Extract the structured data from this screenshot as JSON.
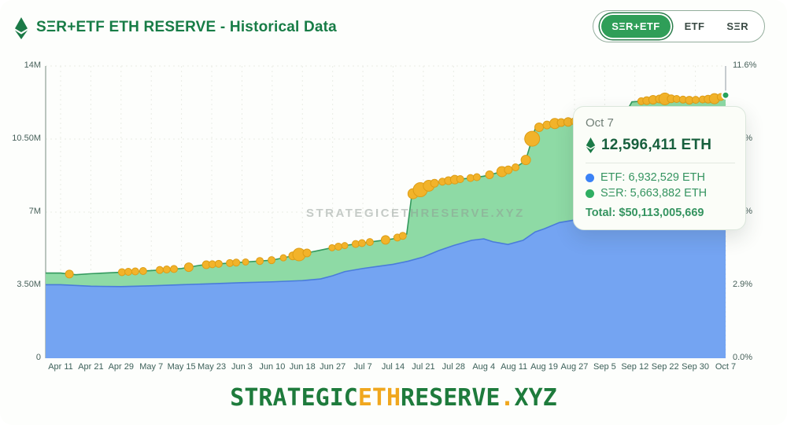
{
  "header": {
    "title": "SΞR+ETF ETH RESERVE - Historical Data",
    "toggle": {
      "options": [
        {
          "label": "SΞR+ETF",
          "selected": true
        },
        {
          "label": "ETF",
          "selected": false
        },
        {
          "label": "SΞR",
          "selected": false
        }
      ]
    }
  },
  "watermark": "STRATEGICETHRESERVE.XYZ",
  "tooltip": {
    "date": "Oct 7",
    "main_value": "12,596,411 ETH",
    "etf_row": "ETF: 6,932,529 ETH",
    "ser_row": "SΞR: 5,663,882 ETH",
    "total_row": "Total: $50,113,005,669"
  },
  "footer": {
    "part1": "STRATEGIC",
    "part2": "ETH",
    "part3": "RESERVE",
    "part4": ".",
    "part5": "XYZ"
  },
  "colors": {
    "title_green": "#177c46",
    "selected_pill": "#2f9e58",
    "etf_fill": "#74a4f2",
    "etf_line": "#4a7cdb",
    "ser_fill": "#8edaa5",
    "ser_line": "#339a5d",
    "event_dot": "#f2b32a",
    "event_dot_stroke": "#dd9d17",
    "tooltip_etf_dot": "#3b82f6",
    "tooltip_ser_dot": "#2fae62",
    "footer_amber": "#f0a71e"
  },
  "chart_data": {
    "type": "area",
    "stacked": true,
    "unit": "million ETH",
    "title": "SΞR+ETF ETH RESERVE - Historical Data",
    "x_labels": [
      "Apr 11",
      "Apr 21",
      "Apr 29",
      "May 7",
      "May 15",
      "May 23",
      "Jun 3",
      "Jun 10",
      "Jun 18",
      "Jun 27",
      "Jul 7",
      "Jul 14",
      "Jul 21",
      "Jul 28",
      "Aug 4",
      "Aug 11",
      "Aug 19",
      "Aug 27",
      "Sep 5",
      "Sep 12",
      "Sep 22",
      "Sep 30",
      "Oct 7"
    ],
    "y_left_ticks": [
      "0",
      "3.50M",
      "7M",
      "10.50M",
      "14M"
    ],
    "y_right_ticks": [
      "0.0%",
      "2.9%",
      "5.8%",
      "8.7%",
      "11.6%"
    ],
    "y_max_millions": 14,
    "grid": true,
    "legend_position": "none",
    "series": [
      {
        "name": "ETF",
        "role": "lower",
        "points": [
          [
            0,
            3.52
          ],
          [
            1,
            3.45
          ],
          [
            2,
            3.43
          ],
          [
            3,
            3.47
          ],
          [
            4,
            3.52
          ],
          [
            5,
            3.57
          ],
          [
            6,
            3.62
          ],
          [
            7,
            3.66
          ],
          [
            8,
            3.72
          ],
          [
            8.6,
            3.8
          ],
          [
            9,
            3.95
          ],
          [
            9.4,
            4.15
          ],
          [
            10,
            4.3
          ],
          [
            10.5,
            4.4
          ],
          [
            11,
            4.5
          ],
          [
            11.5,
            4.65
          ],
          [
            12,
            4.85
          ],
          [
            12.5,
            5.15
          ],
          [
            13,
            5.4
          ],
          [
            13.6,
            5.65
          ],
          [
            14,
            5.72
          ],
          [
            14.3,
            5.58
          ],
          [
            14.8,
            5.45
          ],
          [
            15.3,
            5.65
          ],
          [
            15.7,
            6.05
          ],
          [
            16,
            6.2
          ],
          [
            16.5,
            6.5
          ],
          [
            17,
            6.62
          ],
          [
            17.5,
            6.66
          ],
          [
            18,
            6.7
          ],
          [
            18.5,
            6.78
          ],
          [
            19,
            6.88
          ],
          [
            19.5,
            6.93
          ],
          [
            20,
            6.98
          ],
          [
            20.6,
            6.95
          ],
          [
            21,
            6.9
          ],
          [
            21.6,
            6.88
          ],
          [
            22,
            6.93
          ]
        ]
      },
      {
        "name": "SΞR+ETF total",
        "role": "upper-total",
        "points": [
          [
            0,
            4.08
          ],
          [
            0.5,
            4.0
          ],
          [
            1,
            4.05
          ],
          [
            2,
            4.12
          ],
          [
            3,
            4.2
          ],
          [
            4,
            4.3
          ],
          [
            4.6,
            4.45
          ],
          [
            5,
            4.5
          ],
          [
            6,
            4.6
          ],
          [
            7,
            4.7
          ],
          [
            7.5,
            4.85
          ],
          [
            8,
            5.0
          ],
          [
            8.5,
            5.15
          ],
          [
            9,
            5.3
          ],
          [
            9.5,
            5.42
          ],
          [
            10,
            5.52
          ],
          [
            10.5,
            5.62
          ],
          [
            11,
            5.72
          ],
          [
            11.3,
            5.85
          ],
          [
            11.45,
            5.95
          ],
          [
            11.62,
            7.85
          ],
          [
            12,
            8.15
          ],
          [
            12.4,
            8.4
          ],
          [
            13,
            8.55
          ],
          [
            13.5,
            8.62
          ],
          [
            14,
            8.72
          ],
          [
            14.5,
            8.9
          ],
          [
            15,
            9.1
          ],
          [
            15.38,
            9.45
          ],
          [
            15.7,
            11.0
          ],
          [
            16,
            11.15
          ],
          [
            16.5,
            11.28
          ],
          [
            17,
            11.35
          ],
          [
            17.5,
            11.4
          ],
          [
            18,
            11.45
          ],
          [
            18.6,
            11.5
          ],
          [
            18.9,
            12.28
          ],
          [
            19.3,
            12.32
          ],
          [
            19.8,
            12.42
          ],
          [
            20.3,
            12.43
          ],
          [
            20.8,
            12.36
          ],
          [
            21.3,
            12.4
          ],
          [
            21.7,
            12.44
          ],
          [
            22,
            12.6
          ]
        ]
      }
    ],
    "final_values": {
      "date": "Oct 7",
      "total_eth": 12596411,
      "etf_eth": 6932529,
      "ser_eth": 5663882,
      "total_usd": 50113005669
    },
    "purchase_events": [
      [
        0.29,
        5
      ],
      [
        2.03,
        4.5
      ],
      [
        2.24,
        4.5
      ],
      [
        2.47,
        4.5
      ],
      [
        2.73,
        4.5
      ],
      [
        3.28,
        4.5
      ],
      [
        3.51,
        4.5
      ],
      [
        3.75,
        4.5
      ],
      [
        4.24,
        5.5
      ],
      [
        4.82,
        5
      ],
      [
        5.02,
        4.5
      ],
      [
        5.23,
        4.5
      ],
      [
        5.6,
        4.5
      ],
      [
        5.81,
        4.5
      ],
      [
        6.12,
        4
      ],
      [
        6.59,
        4.5
      ],
      [
        6.98,
        4.5
      ],
      [
        7.37,
        4
      ],
      [
        7.68,
        5
      ],
      [
        7.89,
        8
      ],
      [
        8.15,
        5
      ],
      [
        8.98,
        4
      ],
      [
        9.19,
        4.5
      ],
      [
        9.4,
        4
      ],
      [
        9.76,
        4.5
      ],
      [
        9.97,
        4.5
      ],
      [
        10.23,
        4.5
      ],
      [
        10.75,
        5.5
      ],
      [
        11.14,
        4.5
      ],
      [
        11.32,
        4.5
      ],
      [
        11.66,
        6.5
      ],
      [
        11.9,
        9
      ],
      [
        12.18,
        7
      ],
      [
        12.37,
        5
      ],
      [
        12.63,
        4.5
      ],
      [
        12.83,
        5
      ],
      [
        13.04,
        5.5
      ],
      [
        13.22,
        4.5
      ],
      [
        13.56,
        4.5
      ],
      [
        13.77,
        4.5
      ],
      [
        14.19,
        5
      ],
      [
        14.6,
        6.5
      ],
      [
        14.81,
        5
      ],
      [
        15.05,
        4.5
      ],
      [
        15.39,
        6
      ],
      [
        15.6,
        9.5
      ],
      [
        15.83,
        5.5
      ],
      [
        16.09,
        5
      ],
      [
        16.35,
        6.5
      ],
      [
        16.56,
        5
      ],
      [
        16.79,
        5.5
      ],
      [
        17.0,
        4.5
      ],
      [
        19.21,
        4.5
      ],
      [
        19.39,
        5
      ],
      [
        19.6,
        5.5
      ],
      [
        19.81,
        5
      ],
      [
        19.99,
        7.5
      ],
      [
        20.2,
        5
      ],
      [
        20.38,
        4.5
      ],
      [
        20.59,
        4.5
      ],
      [
        20.8,
        5
      ],
      [
        21.01,
        4.5
      ],
      [
        21.24,
        4.5
      ],
      [
        21.42,
        5
      ],
      [
        21.63,
        6.5
      ],
      [
        21.84,
        4.5
      ]
    ],
    "end_markers": [
      {
        "series": "SΞR+ETF total",
        "label": "Oct 7",
        "value_millions": 12.6,
        "color": "#27a35c"
      },
      {
        "series": "ETF",
        "label": "Oct 7",
        "value_millions": 6.93,
        "color": "#3b82f6"
      }
    ],
    "crosshair": {
      "at_label": "Oct 7",
      "color": "#b3bac0"
    }
  }
}
